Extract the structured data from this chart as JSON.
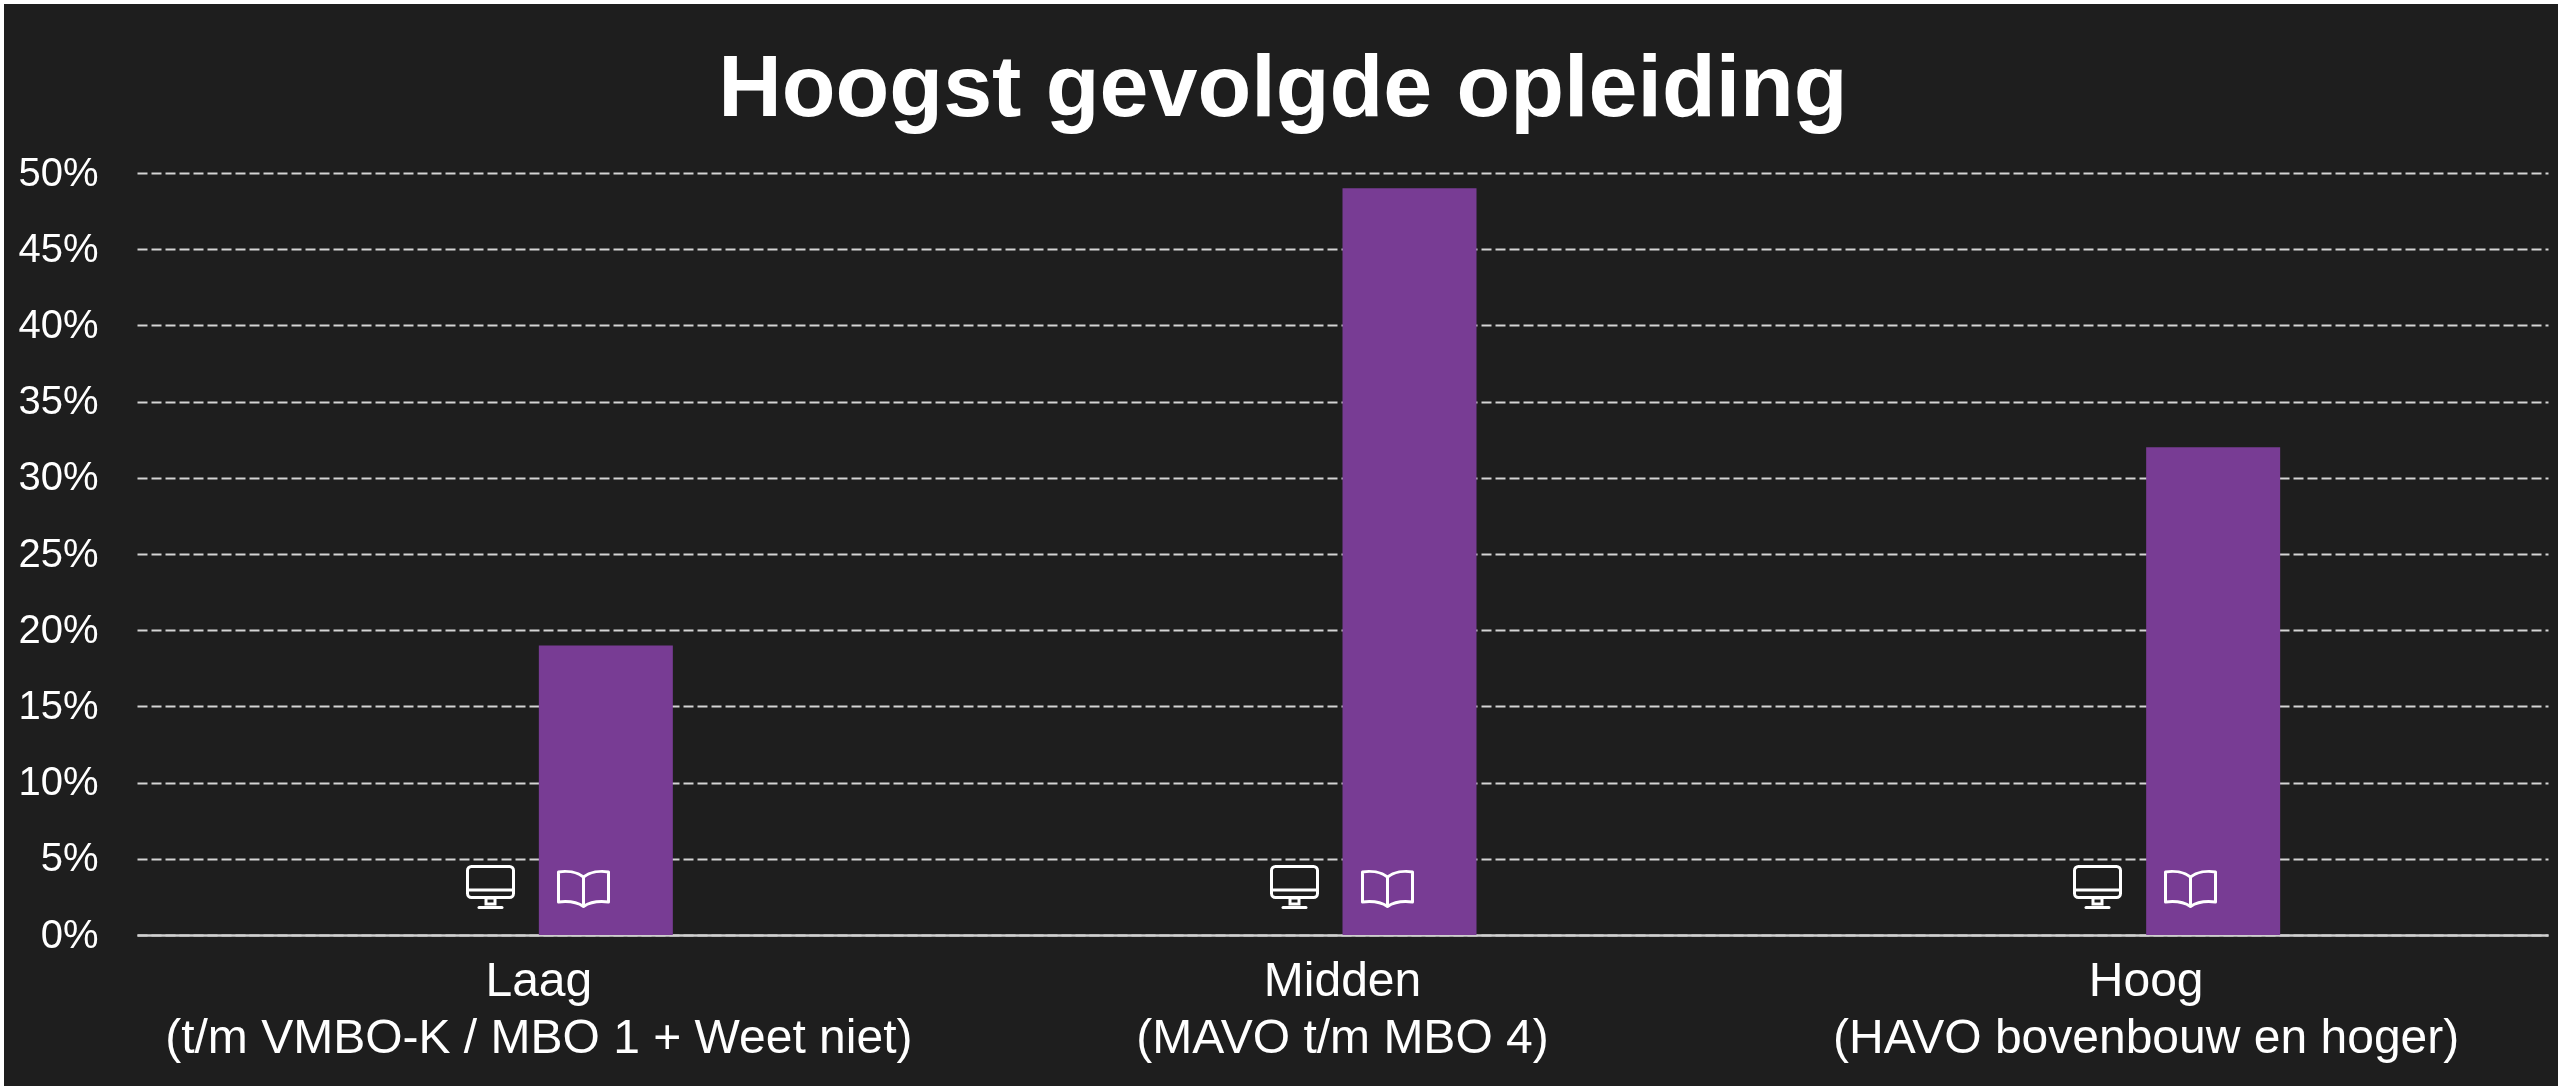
{
  "chart_data": {
    "type": "bar",
    "title": "Hoogst gevolgde opleiding",
    "categories": [
      "Laag\n(t/m VMBO-K / MBO 1 + Weet niet)",
      "Midden\n(MAVO t/m MBO 4)",
      "Hoog\n(HAVO bovenbouw en hoger)"
    ],
    "values": [
      19,
      49,
      32
    ],
    "color": "#783c94",
    "ylim": [
      0,
      50
    ],
    "yticks": [
      {
        "value": 0,
        "label": "0%"
      },
      {
        "value": 5,
        "label": "5%"
      },
      {
        "value": 10,
        "label": "10%"
      },
      {
        "value": 15,
        "label": "15%"
      },
      {
        "value": 20,
        "label": "20%"
      },
      {
        "value": 25,
        "label": "25%"
      },
      {
        "value": 30,
        "label": "30%"
      },
      {
        "value": 35,
        "label": "35%"
      },
      {
        "value": 40,
        "label": "40%"
      },
      {
        "value": 45,
        "label": "45%"
      },
      {
        "value": 50,
        "label": "50%"
      }
    ],
    "grid": "y"
  }
}
